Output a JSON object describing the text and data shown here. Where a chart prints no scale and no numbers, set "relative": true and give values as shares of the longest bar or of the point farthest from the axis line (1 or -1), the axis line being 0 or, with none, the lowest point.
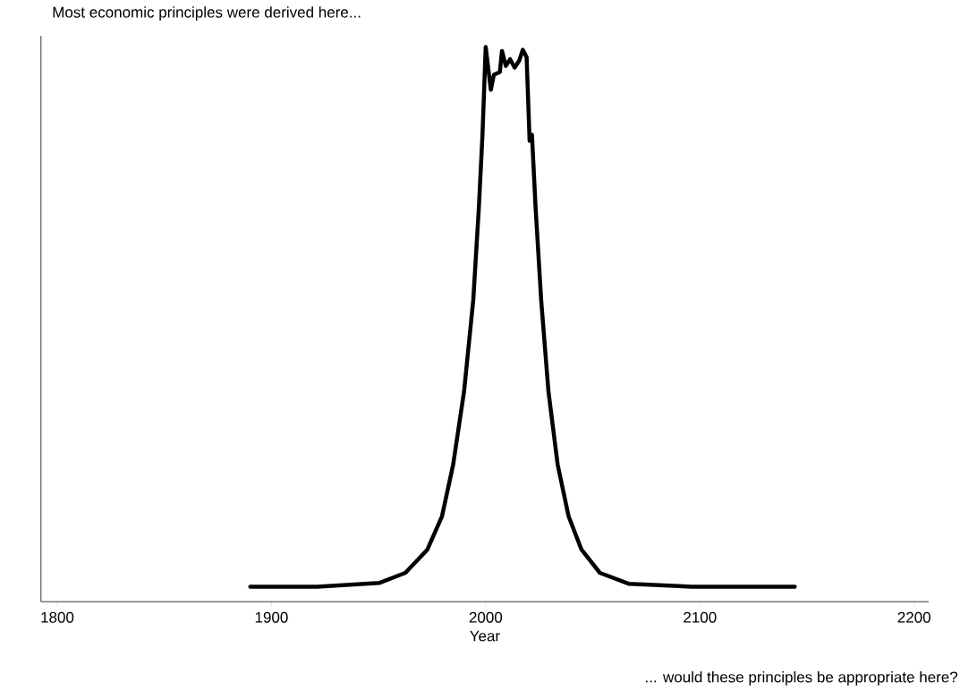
{
  "chart_data": {
    "type": "line",
    "relative": true,
    "xlabel": "Year",
    "annotations": [
      "Most economic principles were derived here...",
      "... would these principles be appropriate here?"
    ],
    "xlim": [
      1792.4,
      2206.8
    ],
    "xticks": [
      1800,
      1900,
      2000,
      2100,
      2200
    ],
    "tick_labels": "x",
    "line_style": "solid",
    "series": [
      {
        "color": "#000000",
        "x": [
          1890.1,
          1921.4,
          1950.5,
          1962.5,
          1972.8,
          1979.6,
          1984.8,
          1989.9,
          1994.2,
          1996.8,
          1998.5,
          2000.0,
          2002.4,
          2003.8,
          2006.6,
          2007.6,
          2009.4,
          2011.4,
          2013.5,
          2015.6,
          2017.3,
          2019.1,
          2020.5,
          2021.6,
          2023.3,
          2025.9,
          2029.3,
          2033.6,
          2038.7,
          2044.7,
          2053.3,
          2067.0,
          2096.1,
          2144.3
        ],
        "values": [
          0.027,
          0.027,
          0.034,
          0.052,
          0.094,
          0.154,
          0.247,
          0.379,
          0.544,
          0.71,
          0.842,
          1.0,
          0.923,
          0.95,
          0.955,
          0.993,
          0.966,
          0.978,
          0.963,
          0.975,
          0.995,
          0.982,
          0.831,
          0.842,
          0.71,
          0.544,
          0.379,
          0.247,
          0.154,
          0.094,
          0.052,
          0.032,
          0.027,
          0.027
        ]
      }
    ]
  }
}
